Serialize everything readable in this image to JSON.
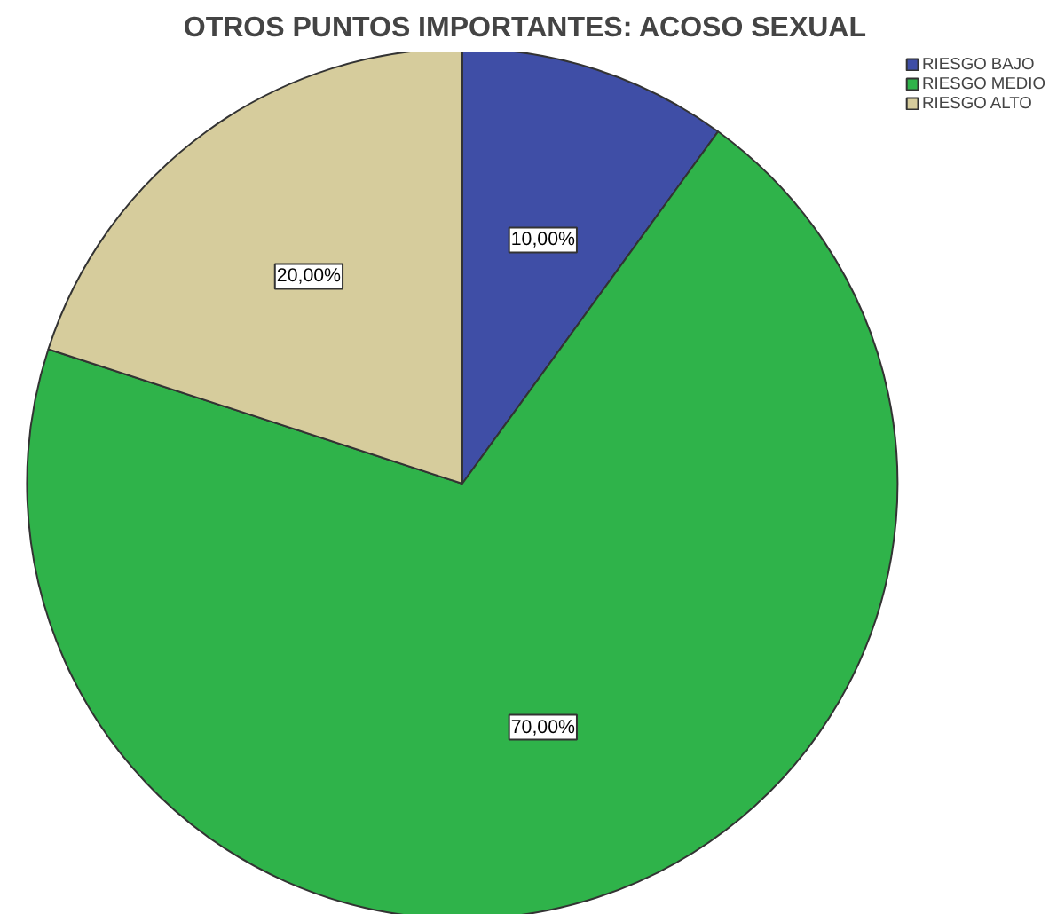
{
  "chart_data": {
    "type": "pie",
    "title": "OTROS PUNTOS IMPORTANTES: ACOSO SEXUAL",
    "categories": [
      "RIESGO BAJO",
      "RIESGO MEDIO",
      "RIESGO ALTO"
    ],
    "values": [
      10,
      70,
      20
    ],
    "colors": [
      "#3f4ea6",
      "#2fb34a",
      "#d6cc9c"
    ],
    "value_labels": [
      "10,00%",
      "70,00%",
      "20,00%"
    ],
    "legend": "top right"
  }
}
